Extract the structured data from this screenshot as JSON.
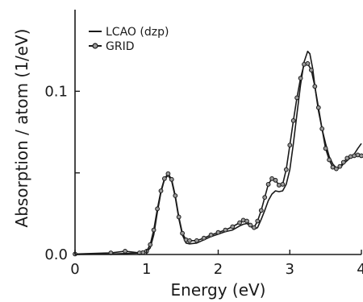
{
  "chart_data": {
    "type": "line",
    "xlabel": "Energy (eV)",
    "ylabel": "Absorption / atom (1/eV)",
    "xlim": [
      0,
      4
    ],
    "ylim": [
      0,
      0.15
    ],
    "x_ticks": [
      0,
      1,
      2,
      3,
      4
    ],
    "x_tick_labels": [
      "0",
      "1",
      "2",
      "3",
      "4"
    ],
    "y_ticks": [
      0,
      0.05,
      0.1
    ],
    "y_tick_labels": [
      "0.0",
      "",
      "0.1"
    ],
    "legend_position": "top-left",
    "series": [
      {
        "name": "LCAO (dzp)",
        "color": "#1a1a1a",
        "marker": "none",
        "x": [
          0.0,
          0.5,
          0.8,
          0.95,
          1.0,
          1.05,
          1.1,
          1.15,
          1.2,
          1.25,
          1.3,
          1.35,
          1.4,
          1.45,
          1.5,
          1.55,
          1.6,
          1.7,
          1.8,
          1.9,
          2.0,
          2.1,
          2.2,
          2.3,
          2.35,
          2.4,
          2.45,
          2.5,
          2.55,
          2.6,
          2.65,
          2.7,
          2.75,
          2.8,
          2.85,
          2.9,
          2.95,
          3.0,
          3.05,
          3.1,
          3.15,
          3.2,
          3.25,
          3.28,
          3.32,
          3.36,
          3.4,
          3.45,
          3.5,
          3.55,
          3.6,
          3.65,
          3.7,
          3.75,
          3.8,
          3.85,
          3.9,
          3.95,
          4.0
        ],
        "y": [
          0.0,
          0.0003,
          0.0008,
          0.001,
          0.0015,
          0.004,
          0.012,
          0.026,
          0.038,
          0.046,
          0.0485,
          0.045,
          0.035,
          0.022,
          0.012,
          0.007,
          0.0065,
          0.007,
          0.009,
          0.011,
          0.0125,
          0.014,
          0.015,
          0.0175,
          0.0185,
          0.019,
          0.0175,
          0.0155,
          0.0165,
          0.0215,
          0.027,
          0.033,
          0.037,
          0.039,
          0.0385,
          0.039,
          0.043,
          0.052,
          0.068,
          0.086,
          0.104,
          0.118,
          0.1245,
          0.123,
          0.114,
          0.1,
          0.088,
          0.077,
          0.068,
          0.06,
          0.0555,
          0.053,
          0.053,
          0.0555,
          0.0575,
          0.0595,
          0.0615,
          0.065,
          0.068
        ]
      },
      {
        "name": "GRID",
        "color": "#1a1a1a",
        "marker": "circle",
        "x": [
          0.0,
          0.5,
          0.7,
          0.9,
          0.95,
          1.0,
          1.05,
          1.1,
          1.15,
          1.2,
          1.25,
          1.3,
          1.35,
          1.4,
          1.45,
          1.5,
          1.55,
          1.6,
          1.7,
          1.8,
          1.9,
          2.0,
          2.1,
          2.2,
          2.3,
          2.35,
          2.4,
          2.45,
          2.5,
          2.55,
          2.6,
          2.65,
          2.7,
          2.75,
          2.8,
          2.85,
          2.9,
          2.95,
          3.0,
          3.05,
          3.1,
          3.15,
          3.2,
          3.25,
          3.3,
          3.35,
          3.4,
          3.45,
          3.5,
          3.55,
          3.6,
          3.65,
          3.7,
          3.75,
          3.8,
          3.85,
          3.9,
          3.95,
          4.0
        ],
        "y": [
          0.0003,
          0.001,
          0.002,
          0.001,
          0.0012,
          0.002,
          0.006,
          0.015,
          0.028,
          0.039,
          0.0465,
          0.0495,
          0.046,
          0.036,
          0.023,
          0.013,
          0.009,
          0.0085,
          0.0085,
          0.01,
          0.012,
          0.0135,
          0.015,
          0.017,
          0.0195,
          0.021,
          0.0205,
          0.018,
          0.0165,
          0.0205,
          0.027,
          0.035,
          0.043,
          0.0465,
          0.0455,
          0.0425,
          0.043,
          0.052,
          0.067,
          0.082,
          0.096,
          0.108,
          0.1165,
          0.117,
          0.113,
          0.103,
          0.09,
          0.077,
          0.065,
          0.058,
          0.0535,
          0.0525,
          0.054,
          0.0565,
          0.059,
          0.06,
          0.0605,
          0.061,
          0.0605
        ]
      }
    ]
  }
}
